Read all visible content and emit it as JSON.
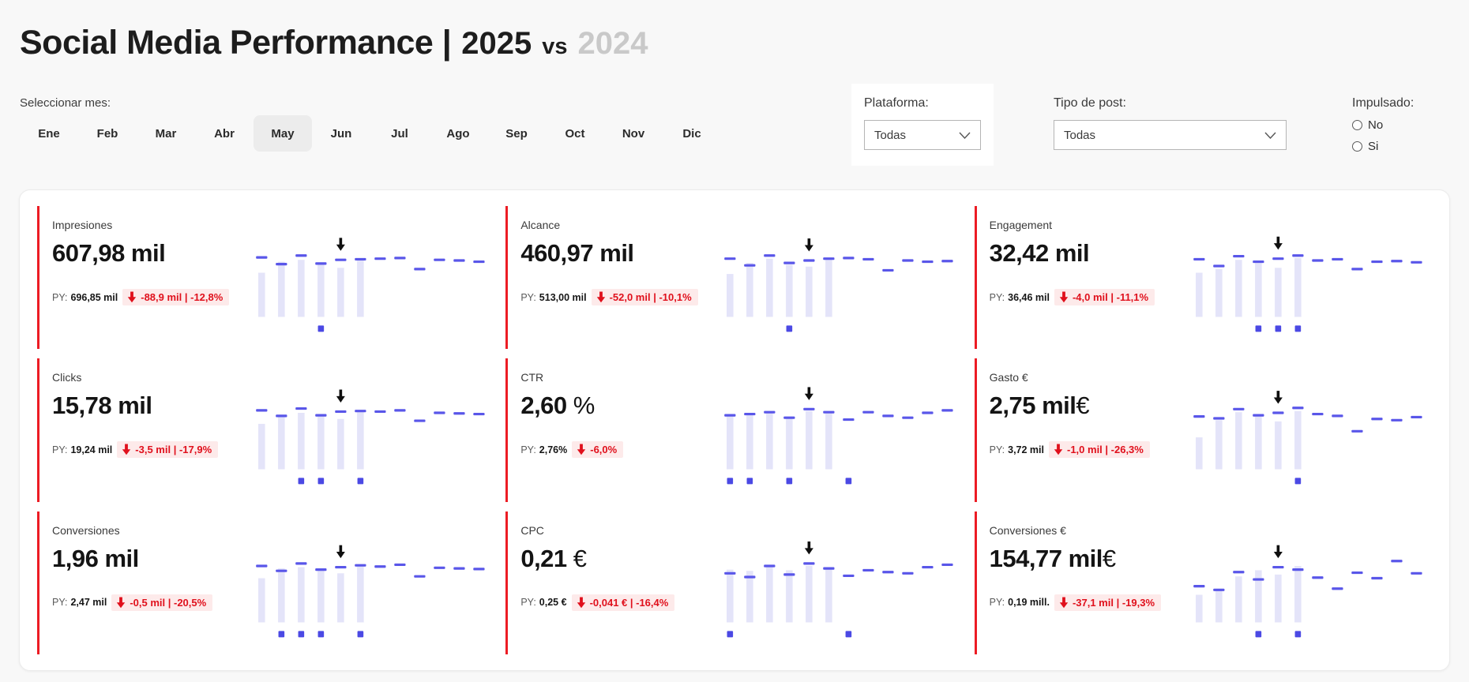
{
  "header": {
    "title_main": "Social Media Performance |",
    "title_year_current": "2025",
    "title_vs": "vs",
    "title_year_prev": "2024"
  },
  "filters": {
    "month_label": "Seleccionar mes:",
    "months": [
      "Ene",
      "Feb",
      "Mar",
      "Abr",
      "May",
      "Jun",
      "Jul",
      "Ago",
      "Sep",
      "Oct",
      "Nov",
      "Dic"
    ],
    "selected_month": "May",
    "platform": {
      "label": "Plataforma:",
      "value": "Todas"
    },
    "post_type": {
      "label": "Tipo de post:",
      "value": "Todas"
    },
    "boosted": {
      "label": "Impulsado:",
      "options": [
        "No",
        "Si"
      ],
      "selected": null
    }
  },
  "colors": {
    "accent_red": "#ec1c24",
    "delta_red": "#e0101c",
    "delta_bg": "#fdeaea",
    "bar_fill": "#e4e4f9",
    "dash_color": "#5956e9",
    "square_color": "#4b49e4",
    "prev_year_gray": "#c9c9c9",
    "selected_month_bg": "#ececec",
    "page_bg": "#f8f8f8"
  },
  "chart_data": {
    "type": "kpi_cards_with_sparklines",
    "description": "3x3 grid of KPI cards. Sparkline bars = monthly 2025 values (Ene-Jun), dashes = monthly 2024 prior-year values (Ene-Dic), values normalized 0-100. Black arrow marks selected month (May). Blue squares below baseline mark flagged months.",
    "categories": [
      "Ene",
      "Feb",
      "Mar",
      "Abr",
      "May",
      "Jun",
      "Jul",
      "Ago",
      "Sep",
      "Oct",
      "Nov",
      "Dic"
    ],
    "arrow_month_label": "May",
    "cards": [
      {
        "title": "Impresiones",
        "value": "607,98 mil",
        "suffix": "",
        "py_label": "PY:",
        "py_value": "696,85 mil",
        "delta": "-88,9 mil | -12,8%",
        "sparkline": {
          "bars": [
            72,
            90,
            93,
            89,
            80,
            95
          ],
          "dashes": [
            97,
            86,
            100,
            87,
            93,
            94,
            95,
            96,
            78,
            93,
            92,
            90
          ],
          "arrow_month": 5,
          "squares": [
            4
          ]
        }
      },
      {
        "title": "Alcance",
        "value": "460,97 mil",
        "suffix": "",
        "py_label": "PY:",
        "py_value": "513,00 mil",
        "delta": "-52,0 mil | -10,1%",
        "sparkline": {
          "bars": [
            70,
            88,
            95,
            85,
            82,
            96
          ],
          "dashes": [
            95,
            84,
            100,
            88,
            92,
            95,
            96,
            94,
            76,
            92,
            90,
            91
          ],
          "arrow_month": 5,
          "squares": [
            4
          ]
        }
      },
      {
        "title": "Engagement",
        "value": "32,42 mil",
        "suffix": "",
        "py_label": "PY:",
        "py_value": "36,46 mil",
        "delta": "-4,0 mil | -11,1%",
        "sparkline": {
          "bars": [
            72,
            78,
            93,
            88,
            80,
            96
          ],
          "dashes": [
            94,
            83,
            99,
            90,
            95,
            100,
            92,
            94,
            78,
            90,
            91,
            89
          ],
          "arrow_month": 5,
          "squares": [
            4,
            5,
            6
          ]
        }
      },
      {
        "title": "Clicks",
        "value": "15,78 mil",
        "suffix": "",
        "py_label": "PY:",
        "py_value": "19,24 mil",
        "delta": "-3,5 mil | -17,9%",
        "sparkline": {
          "bars": [
            74,
            88,
            92,
            86,
            82,
            94
          ],
          "dashes": [
            96,
            87,
            99,
            88,
            94,
            95,
            94,
            96,
            79,
            92,
            91,
            90
          ],
          "arrow_month": 5,
          "squares": [
            3,
            4,
            6
          ]
        }
      },
      {
        "title": "CTR",
        "value": "2,60",
        "suffix": " %",
        "py_label": "PY:",
        "py_value": "2,76%",
        "delta": "-6,0%",
        "sparkline": {
          "bars": [
            88,
            90,
            92,
            86,
            95,
            91
          ],
          "dashes": [
            88,
            90,
            93,
            84,
            98,
            93,
            81,
            93,
            87,
            84,
            92,
            96
          ],
          "arrow_month": 5,
          "squares": [
            1,
            2,
            4,
            7
          ]
        }
      },
      {
        "title": "Gasto €",
        "value": "2,75 mil",
        "suffix": "€",
        "py_label": "PY:",
        "py_value": "3,72 mil",
        "delta": "-1,0 mil | -26,3%",
        "sparkline": {
          "bars": [
            52,
            80,
            93,
            86,
            78,
            95
          ],
          "dashes": [
            86,
            83,
            98,
            88,
            92,
            100,
            90,
            87,
            62,
            82,
            80,
            85
          ],
          "arrow_month": 5,
          "squares": [
            6
          ]
        }
      },
      {
        "title": "Conversiones",
        "value": "1,96 mil",
        "suffix": "",
        "py_label": "PY:",
        "py_value": "2,47 mil",
        "delta": "-0,5 mil | -20,5%",
        "sparkline": {
          "bars": [
            72,
            88,
            90,
            85,
            80,
            93
          ],
          "dashes": [
            92,
            84,
            96,
            86,
            90,
            93,
            91,
            94,
            75,
            89,
            88,
            87
          ],
          "arrow_month": 5,
          "squares": [
            2,
            3,
            4,
            6
          ]
        }
      },
      {
        "title": "CPC",
        "value": "0,21",
        "suffix": " €",
        "py_label": "PY:",
        "py_value": "0,25 €",
        "delta": "-0,041 € | -16,4%",
        "sparkline": {
          "bars": [
            86,
            84,
            90,
            85,
            92,
            88
          ],
          "dashes": [
            80,
            74,
            92,
            78,
            96,
            88,
            76,
            85,
            82,
            80,
            90,
            94
          ],
          "arrow_month": 5,
          "squares": [
            1,
            7
          ]
        }
      },
      {
        "title": "Conversiones €",
        "value": "154,77 mil",
        "suffix": "€",
        "py_label": "PY:",
        "py_value": "0,19 mill.",
        "delta": "-37,1 mil | -19,3%",
        "sparkline": {
          "bars": [
            45,
            55,
            75,
            85,
            78,
            92
          ],
          "dashes": [
            59,
            53,
            82,
            70,
            90,
            86,
            73,
            55,
            81,
            72,
            100,
            80
          ],
          "arrow_month": 5,
          "squares": [
            4,
            6
          ]
        }
      }
    ]
  }
}
